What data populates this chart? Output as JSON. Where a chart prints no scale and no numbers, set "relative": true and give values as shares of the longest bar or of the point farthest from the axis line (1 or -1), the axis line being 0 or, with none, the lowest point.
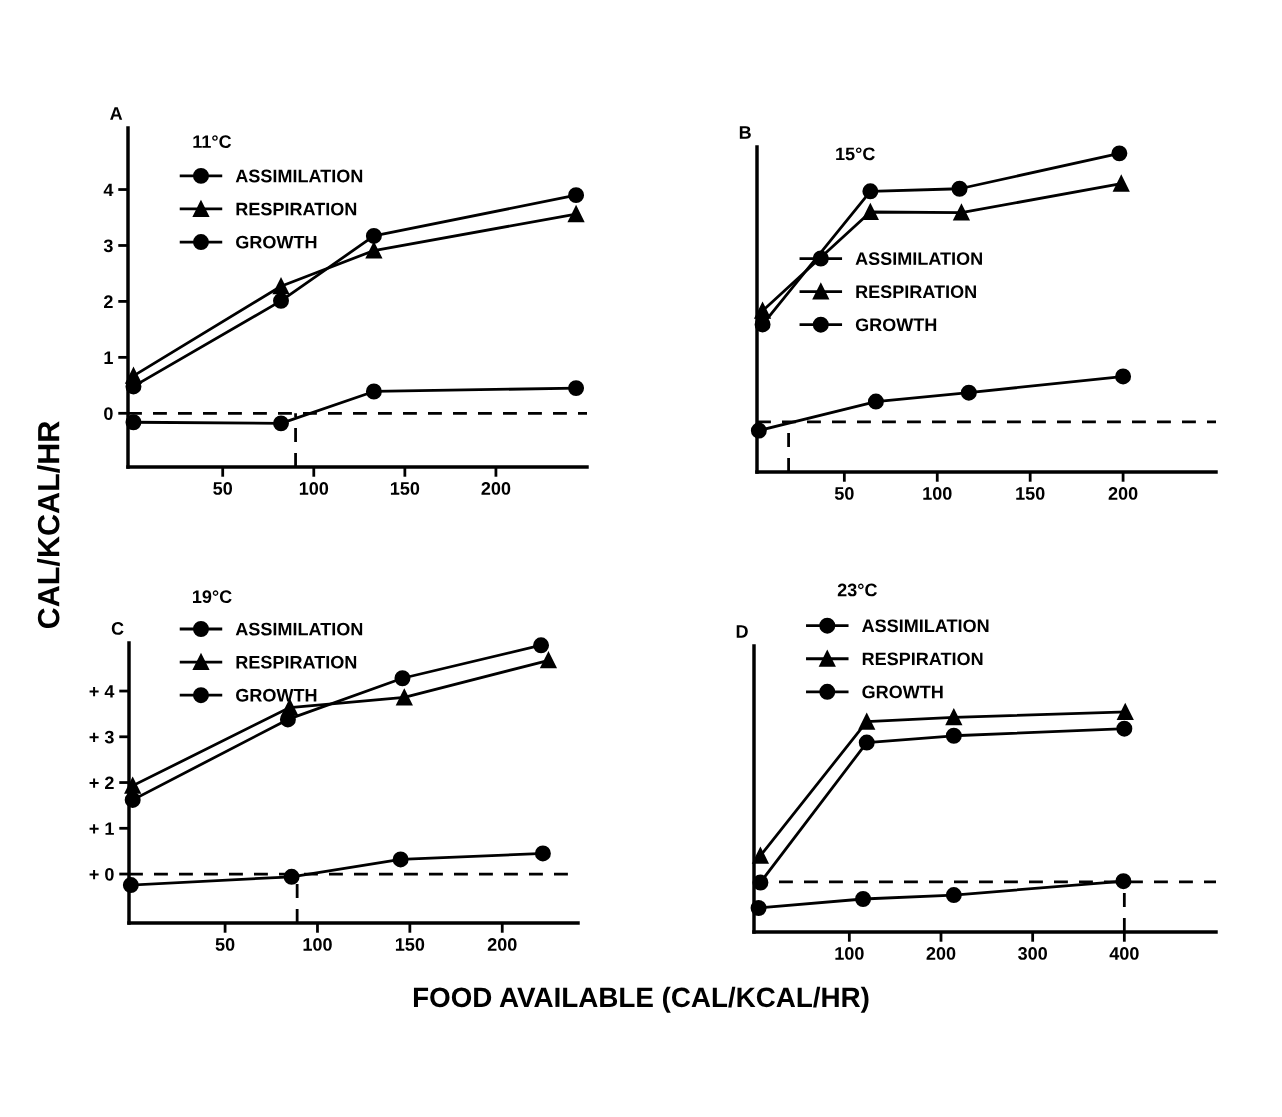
{
  "chart_data": [
    {
      "type": "line",
      "title": "A",
      "subtitle": "11°C",
      "ylabel": "CAL/KCAL/HR",
      "xlim": [
        -2,
        250
      ],
      "xticks": [
        50,
        100,
        150,
        200
      ],
      "ylim": [
        -0.96,
        5.1
      ],
      "yticks": [
        0,
        1,
        2,
        3,
        4
      ],
      "legend": "top left",
      "grid": false,
      "ref_lines": [
        {
          "axis": "y",
          "value": 0,
          "line_style": "dashed",
          "color": "#000000"
        }
      ],
      "series": [
        {
          "name": "ASSIMILATION",
          "color": "#000000",
          "marker": "circle",
          "x": [
            1,
            82,
            133,
            244
          ],
          "values": [
            0.48,
            2.01,
            3.17,
            3.9
          ]
        },
        {
          "name": "RESPIRATION",
          "color": "#000000",
          "marker": "triangle",
          "x": [
            1,
            82,
            133,
            244
          ],
          "values": [
            0.67,
            2.27,
            2.91,
            3.56
          ]
        },
        {
          "name": "GROWTH",
          "color": "#000000",
          "marker": "circle",
          "x": [
            1,
            82,
            133,
            244
          ],
          "values": [
            -0.16,
            -0.18,
            0.39,
            0.45
          ]
        },
        {
          "color": "#000000",
          "marker": "none",
          "line_style": "dashed",
          "x": [
            90,
            90
          ],
          "values": [
            -0.96,
            0
          ]
        }
      ]
    },
    {
      "type": "line",
      "title": "B",
      "subtitle": "15°C",
      "xlim": [
        3,
        250
      ],
      "xticks": [
        50,
        100,
        150,
        200
      ],
      "relative": true,
      "legend": "left",
      "grid": false,
      "ref_lines": [
        {
          "axis": "y",
          "value": 0.157,
          "line_style": "dashed",
          "color": "#000000"
        }
      ],
      "series": [
        {
          "name": "ASSIMILATION",
          "color": "#000000",
          "marker": "circle",
          "x": [
            6,
            64,
            112,
            198
          ],
          "values": [
            0.463,
            0.881,
            0.889,
            1.0
          ]
        },
        {
          "name": "RESPIRATION",
          "color": "#000000",
          "marker": "triangle",
          "x": [
            6,
            64,
            113,
            199
          ],
          "values": [
            0.506,
            0.816,
            0.814,
            0.905
          ]
        },
        {
          "name": "GROWTH",
          "color": "#000000",
          "marker": "circle",
          "x": [
            4,
            67,
            117,
            200
          ],
          "values": [
            0.13,
            0.221,
            0.249,
            0.3
          ]
        },
        {
          "color": "#000000",
          "marker": "none",
          "line_style": "dashed",
          "x": [
            20,
            20
          ],
          "values": [
            0,
            0.157
          ]
        }
      ]
    },
    {
      "type": "line",
      "title": "C",
      "subtitle": "19°C",
      "xlabel": "FOOD AVAILABLE (CAL/KCAL/HR)",
      "xlim": [
        -2,
        241
      ],
      "xticks": [
        50,
        100,
        150,
        200
      ],
      "ylim": [
        -1.07,
        5.05
      ],
      "yticks": [
        {
          "value": 0,
          "label": "+ 0"
        },
        {
          "value": 1,
          "label": "+ 1"
        },
        {
          "value": 2,
          "label": "+ 2"
        },
        {
          "value": 3,
          "label": "+ 3"
        },
        {
          "value": 4,
          "label": "+ 4"
        }
      ],
      "legend": "top left",
      "grid": false,
      "ref_lines": [
        {
          "axis": "y",
          "value": 0,
          "line_style": "dashed",
          "color": "#000000"
        }
      ],
      "series": [
        {
          "name": "ASSIMILATION",
          "color": "#000000",
          "marker": "circle",
          "x": [
            0,
            84,
            146,
            221
          ],
          "values": [
            1.62,
            3.38,
            4.28,
            5.0
          ]
        },
        {
          "name": "RESPIRATION",
          "color": "#000000",
          "marker": "triangle",
          "x": [
            0,
            85,
            147,
            225
          ],
          "values": [
            1.93,
            3.64,
            3.86,
            4.67
          ]
        },
        {
          "name": "GROWTH",
          "color": "#000000",
          "marker": "circle",
          "x": [
            -1,
            86,
            145,
            222
          ],
          "values": [
            -0.24,
            -0.06,
            0.32,
            0.45
          ]
        },
        {
          "color": "#000000",
          "marker": "none",
          "line_style": "dashed",
          "x": [
            89,
            89
          ],
          "values": [
            -1.07,
            0
          ]
        }
      ]
    },
    {
      "type": "line",
      "title": "D",
      "subtitle": "23°C",
      "xlim": [
        -4,
        500
      ],
      "xticks": [
        100,
        200,
        300,
        400
      ],
      "relative": true,
      "legend": "top left",
      "grid": false,
      "ref_lines": [
        {
          "axis": "y",
          "value": 0.228,
          "line_style": "dashed",
          "color": "#000000"
        }
      ],
      "series": [
        {
          "name": "ASSIMILATION",
          "color": "#000000",
          "marker": "circle",
          "x": [
            3,
            119,
            214,
            400
          ],
          "values": [
            0.225,
            0.861,
            0.892,
            0.924
          ]
        },
        {
          "name": "RESPIRATION",
          "color": "#000000",
          "marker": "triangle",
          "x": [
            3,
            119,
            214,
            401
          ],
          "values": [
            0.347,
            0.956,
            0.976,
            1.0
          ]
        },
        {
          "name": "GROWTH",
          "color": "#000000",
          "marker": "circle",
          "x": [
            1,
            115,
            214,
            399
          ],
          "values": [
            0.109,
            0.15,
            0.168,
            0.231
          ]
        },
        {
          "color": "#000000",
          "marker": "none",
          "line_style": "dashed",
          "x": [
            400,
            400
          ],
          "values": [
            0,
            0.228
          ]
        }
      ]
    }
  ]
}
